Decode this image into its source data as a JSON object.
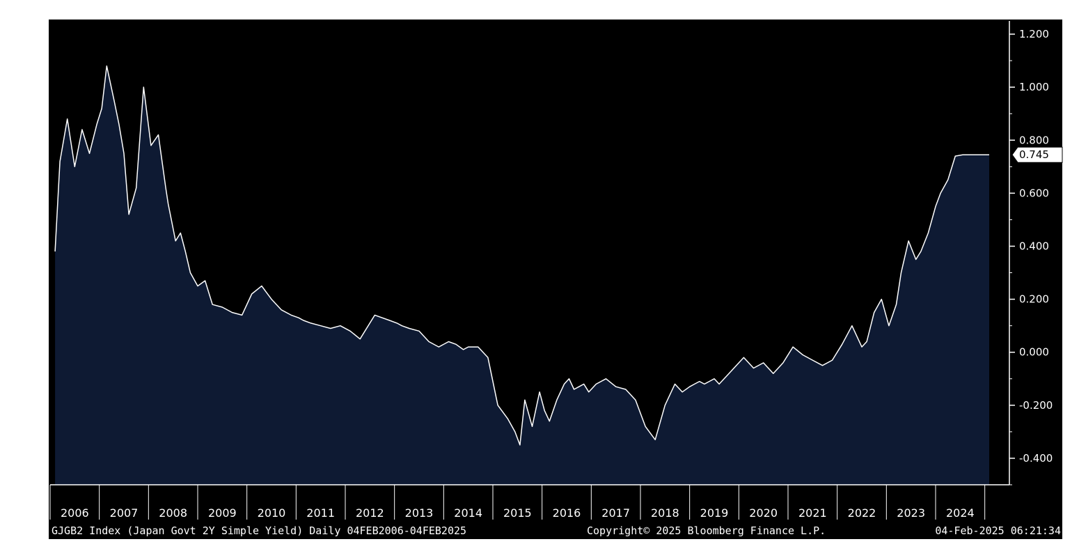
{
  "chart_data": {
    "type": "area",
    "ylim": [
      -0.5,
      1.25
    ],
    "y_ticks": [
      "1.200",
      "1.000",
      "0.800",
      "0.600",
      "0.400",
      "0.200",
      "0.000",
      "-0.200",
      "-0.400"
    ],
    "x_tick_labels": [
      "2006",
      "2007",
      "2008",
      "2009",
      "2010",
      "2011",
      "2012",
      "2013",
      "2014",
      "2015",
      "2016",
      "2017",
      "2018",
      "2019",
      "2020",
      "2021",
      "2022",
      "2023",
      "2024"
    ],
    "last_value_label": "0.745",
    "series": [
      {
        "x": [
          2006.1,
          2006.2,
          2006.35,
          2006.5,
          2006.65,
          2006.8,
          2006.95,
          2007.05,
          2007.15,
          2007.3,
          2007.4,
          2007.5,
          2007.6,
          2007.75,
          2007.9,
          2008.05,
          2008.2,
          2008.35,
          2008.4,
          2008.55,
          2008.65,
          2008.75,
          2008.85,
          2009.0,
          2009.15,
          2009.3,
          2009.5,
          2009.7,
          2009.9,
          2010.1,
          2010.3,
          2010.5,
          2010.7,
          2010.9,
          2011.05,
          2011.15,
          2011.3,
          2011.5,
          2011.7,
          2011.9,
          2012.1,
          2012.3,
          2012.6,
          2012.9,
          2013.05,
          2013.15,
          2013.3,
          2013.5,
          2013.7,
          2013.9,
          2014.1,
          2014.25,
          2014.4,
          2014.5,
          2014.7,
          2014.9,
          2015.1,
          2015.3,
          2015.45,
          2015.55,
          2015.65,
          2015.8,
          2015.95,
          2016.05,
          2016.15,
          2016.3,
          2016.45,
          2016.55,
          2016.65,
          2016.75,
          2016.85,
          2016.95,
          2017.1,
          2017.3,
          2017.5,
          2017.7,
          2017.9,
          2018.1,
          2018.3,
          2018.5,
          2018.7,
          2018.85,
          2019.0,
          2019.1,
          2019.2,
          2019.3,
          2019.4,
          2019.5,
          2019.6,
          2019.75,
          2019.9,
          2020.1,
          2020.3,
          2020.5,
          2020.7,
          2020.9,
          2021.1,
          2021.3,
          2021.5,
          2021.7,
          2021.9,
          2022.1,
          2022.3,
          2022.5,
          2022.6,
          2022.75,
          2022.9,
          2023.05,
          2023.2,
          2023.3,
          2023.45,
          2023.6,
          2023.7,
          2023.85,
          2024.0,
          2024.1,
          2024.25,
          2024.4,
          2024.55,
          2024.7,
          2024.85,
          2025.0,
          2025.09
        ],
        "y": [
          0.38,
          0.72,
          0.88,
          0.7,
          0.84,
          0.75,
          0.86,
          0.92,
          1.08,
          0.95,
          0.86,
          0.75,
          0.52,
          0.62,
          1.0,
          0.78,
          0.82,
          0.62,
          0.56,
          0.42,
          0.45,
          0.38,
          0.3,
          0.25,
          0.27,
          0.18,
          0.17,
          0.15,
          0.14,
          0.22,
          0.25,
          0.2,
          0.16,
          0.14,
          0.13,
          0.12,
          0.11,
          0.1,
          0.09,
          0.1,
          0.08,
          0.05,
          0.14,
          0.12,
          0.11,
          0.1,
          0.09,
          0.08,
          0.04,
          0.02,
          0.04,
          0.03,
          0.01,
          0.02,
          0.02,
          -0.02,
          -0.2,
          -0.25,
          -0.3,
          -0.35,
          -0.18,
          -0.28,
          -0.15,
          -0.22,
          -0.26,
          -0.18,
          -0.12,
          -0.1,
          -0.14,
          -0.13,
          -0.12,
          -0.15,
          -0.12,
          -0.1,
          -0.13,
          -0.14,
          -0.18,
          -0.28,
          -0.33,
          -0.2,
          -0.12,
          -0.15,
          -0.13,
          -0.12,
          -0.11,
          -0.12,
          -0.11,
          -0.1,
          -0.12,
          -0.09,
          -0.06,
          -0.02,
          -0.06,
          -0.04,
          -0.08,
          -0.04,
          0.02,
          -0.01,
          -0.03,
          -0.05,
          -0.03,
          0.03,
          0.1,
          0.02,
          0.04,
          0.15,
          0.2,
          0.1,
          0.18,
          0.3,
          0.42,
          0.35,
          0.38,
          0.45,
          0.55,
          0.6,
          0.65,
          0.74,
          0.745,
          0.745,
          0.745,
          0.745,
          0.745
        ]
      }
    ]
  },
  "footer": {
    "left": "GJGB2 Index (Japan Govt 2Y Simple Yield)  Daily 04FEB2006-04FEB2025",
    "center": "Copyright© 2025 Bloomberg Finance L.P.",
    "right": "04-Feb-2025 06:21:34"
  },
  "colors": {
    "plot_bg": "#000000",
    "area_fill": "#0e1a33",
    "line": "#ffffff",
    "axis_text": "#ffffff"
  }
}
